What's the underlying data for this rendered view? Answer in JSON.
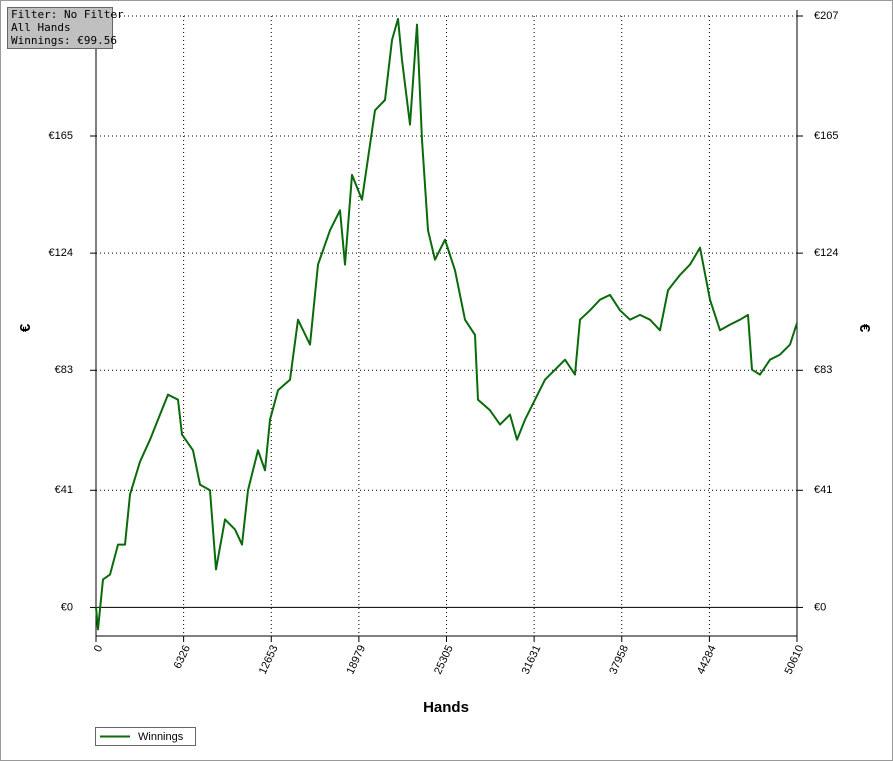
{
  "chart_data": {
    "type": "line",
    "annotations": [
      "Filter: No Filter",
      "All Hands",
      "Winnings: €99.56"
    ],
    "x_label": "Hands",
    "y_label": "€",
    "x": [
      0,
      144,
      505,
      1011,
      1588,
      2094,
      2455,
      3177,
      3899,
      4621,
      5198,
      5920,
      6209,
      7003,
      7508,
      8230,
      8664,
      9313,
      10035,
      10541,
      10974,
      11696,
      12201,
      12562,
      13140,
      14006,
      14584,
      15450,
      16028,
      16894,
      17616,
      17977,
      18482,
      19204,
      20143,
      20865,
      21370,
      21803,
      22092,
      22670,
      23175,
      23536,
      23969,
      24475,
      25197,
      25919,
      26640,
      27363,
      27579,
      28446,
      29168,
      29890,
      30395,
      30973,
      31694,
      32416,
      33138,
      33860,
      34582,
      34943,
      35665,
      36387,
      37109,
      37831,
      38553,
      39275,
      39997,
      40719,
      41297,
      42163,
      42885,
      43607,
      44329,
      45051,
      45773,
      46495,
      47072,
      47361,
      47939,
      48661,
      49383,
      50105,
      50610
    ],
    "series": [
      {
        "name": "Winnings",
        "color": "#0b6a0b",
        "values": [
          0,
          -7.7,
          9.8,
          11.5,
          22,
          22,
          39.5,
          51,
          58.7,
          67.5,
          74.5,
          72.7,
          60.5,
          55,
          43,
          41,
          13.3,
          30.8,
          27.3,
          22,
          41,
          55,
          48,
          65.7,
          76,
          79.7,
          100.7,
          92,
          120,
          132,
          139,
          120,
          151.4,
          142.7,
          174,
          177.6,
          198.6,
          206,
          191.6,
          169,
          204,
          163.6,
          132,
          121.7,
          128.7,
          118,
          100.7,
          95.4,
          72.7,
          69,
          64,
          67.5,
          58.7,
          65.7,
          72.7,
          79.7,
          83.2,
          86.7,
          81.5,
          100.7,
          104,
          107.7,
          109.4,
          104,
          100.7,
          102.4,
          100.7,
          97,
          111,
          116.4,
          120,
          125.9,
          107.7,
          97,
          99,
          100.7,
          102.4,
          83.2,
          81.5,
          86.7,
          88.5,
          92,
          99.56
        ]
      }
    ],
    "xlim": [
      0,
      50610
    ],
    "xticks": [
      0,
      6326,
      12653,
      18979,
      25305,
      31631,
      37958,
      44284,
      50610
    ],
    "ylim": [
      -10,
      207
    ],
    "yticks": [
      {
        "value": 0,
        "label": "€0"
      },
      {
        "value": 41,
        "label": "€41"
      },
      {
        "value": 83,
        "label": "€83"
      },
      {
        "value": 124,
        "label": "€124"
      },
      {
        "value": 165,
        "label": "€165"
      },
      {
        "value": 207,
        "label": "€207"
      }
    ],
    "grid": true
  }
}
